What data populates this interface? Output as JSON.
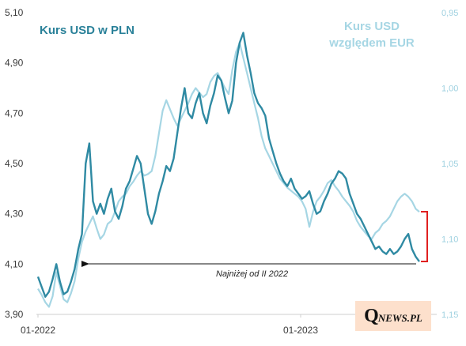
{
  "chart_data": {
    "type": "line",
    "title_left": "Kurs USD w PLN",
    "title_right_line1": "Kurs USD",
    "title_right_line2": "względem EUR",
    "x_ticks": [
      "01-2022",
      "01-2023"
    ],
    "y_left": {
      "ticks": [
        "3,90",
        "4,10",
        "4,30",
        "4,50",
        "4,70",
        "4,90",
        "5,10"
      ],
      "range": [
        3.9,
        5.1
      ]
    },
    "y_right": {
      "ticks": [
        "0,95",
        "1,00",
        "1,05",
        "1,10",
        "1,15"
      ],
      "range": [
        0.95,
        1.15
      ],
      "inverted": true
    },
    "annotation": "Najniżej od II 2022",
    "colors": {
      "usd_pln": "#2f8aa3",
      "usd_eur": "#a6d6e4",
      "bracket": "#e02020",
      "arrow": "#111111"
    },
    "series": [
      {
        "name": "Kurs USD w PLN",
        "axis": "left",
        "values": [
          4.05,
          4.01,
          3.97,
          3.99,
          4.04,
          4.1,
          4.03,
          3.98,
          3.99,
          4.03,
          4.08,
          4.16,
          4.22,
          4.5,
          4.58,
          4.35,
          4.3,
          4.34,
          4.3,
          4.36,
          4.4,
          4.31,
          4.28,
          4.33,
          4.4,
          4.43,
          4.48,
          4.53,
          4.5,
          4.4,
          4.3,
          4.26,
          4.31,
          4.38,
          4.43,
          4.49,
          4.47,
          4.52,
          4.62,
          4.72,
          4.8,
          4.7,
          4.68,
          4.74,
          4.78,
          4.7,
          4.66,
          4.73,
          4.78,
          4.85,
          4.83,
          4.76,
          4.7,
          4.75,
          4.9,
          4.98,
          5.02,
          4.93,
          4.86,
          4.78,
          4.74,
          4.72,
          4.69,
          4.6,
          4.55,
          4.5,
          4.46,
          4.43,
          4.41,
          4.44,
          4.4,
          4.38,
          4.36,
          4.37,
          4.39,
          4.34,
          4.3,
          4.31,
          4.35,
          4.38,
          4.42,
          4.44,
          4.47,
          4.46,
          4.44,
          4.38,
          4.34,
          4.3,
          4.28,
          4.25,
          4.22,
          4.19,
          4.16,
          4.17,
          4.15,
          4.14,
          4.16,
          4.14,
          4.15,
          4.17,
          4.2,
          4.22,
          4.16,
          4.13,
          4.11
        ]
      },
      {
        "name": "Kurs USD względem EUR",
        "axis": "right",
        "values": [
          1.133,
          1.137,
          1.142,
          1.145,
          1.138,
          1.122,
          1.131,
          1.14,
          1.142,
          1.136,
          1.128,
          1.113,
          1.102,
          1.095,
          1.09,
          1.085,
          1.093,
          1.1,
          1.097,
          1.09,
          1.088,
          1.082,
          1.075,
          1.072,
          1.07,
          1.065,
          1.062,
          1.058,
          1.055,
          1.058,
          1.057,
          1.055,
          1.045,
          1.03,
          1.015,
          1.008,
          1.014,
          1.02,
          1.025,
          1.02,
          1.015,
          1.01,
          1.004,
          1.0,
          1.003,
          1.006,
          1.004,
          0.996,
          0.992,
          0.99,
          0.995,
          1.0,
          1.004,
          0.988,
          0.976,
          0.97,
          0.98,
          0.99,
          1.0,
          1.01,
          1.02,
          1.032,
          1.04,
          1.045,
          1.05,
          1.055,
          1.06,
          1.063,
          1.066,
          1.068,
          1.07,
          1.072,
          1.075,
          1.08,
          1.092,
          1.082,
          1.075,
          1.072,
          1.068,
          1.063,
          1.061,
          1.065,
          1.068,
          1.072,
          1.075,
          1.078,
          1.082,
          1.088,
          1.092,
          1.095,
          1.098,
          1.1,
          1.096,
          1.094,
          1.09,
          1.088,
          1.085,
          1.08,
          1.075,
          1.072,
          1.07,
          1.072,
          1.075,
          1.08,
          1.082
        ]
      }
    ]
  },
  "logo": {
    "q": "Q",
    "rest": "NEWS.PL"
  }
}
